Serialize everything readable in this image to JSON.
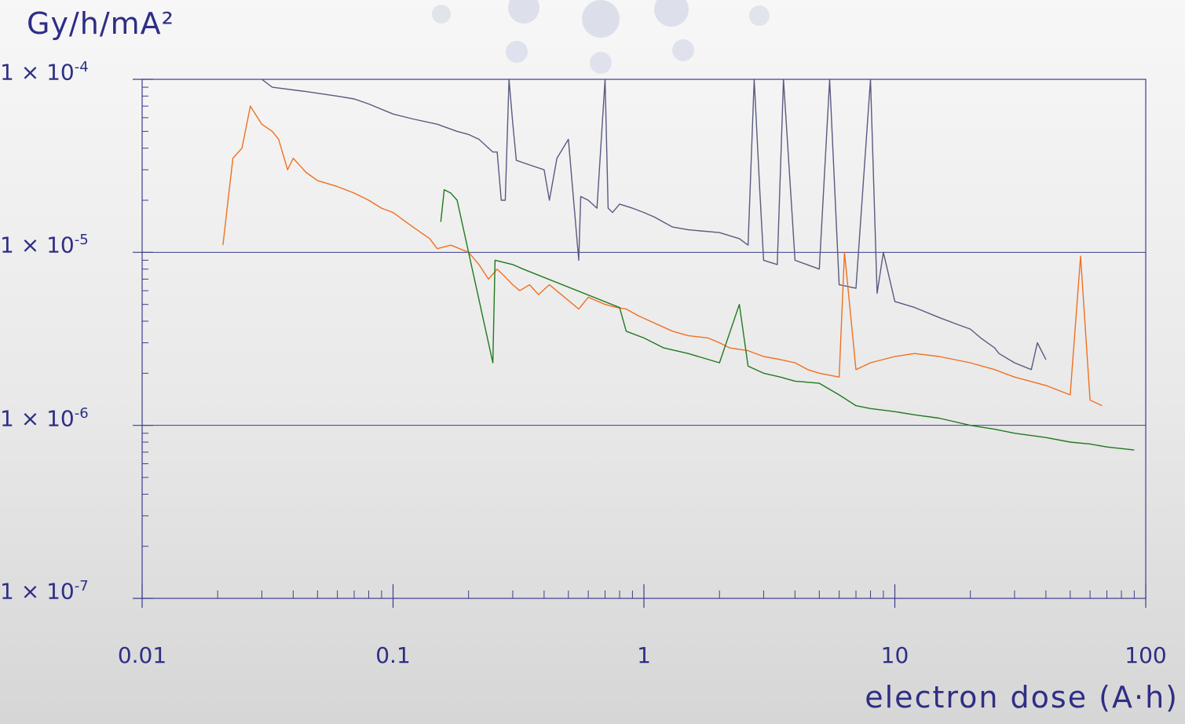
{
  "chart_data": {
    "type": "line",
    "title": "",
    "ylabel": "Gy/h/mA²",
    "xlabel": "electron dose (A·h)",
    "x_scale": "log",
    "y_scale": "log",
    "xlim": [
      0.01,
      100
    ],
    "ylim": [
      1e-07,
      0.0001
    ],
    "grid": "horizontal major lines",
    "legend": "none",
    "x_ticks": [
      {
        "value": 0.01,
        "label": "0.01"
      },
      {
        "value": 0.1,
        "label": "0.1"
      },
      {
        "value": 1,
        "label": "1"
      },
      {
        "value": 10,
        "label": "10"
      },
      {
        "value": 100,
        "label": "100"
      }
    ],
    "y_ticks": [
      {
        "value": 0.0001,
        "mantissa": "1 × 10",
        "exponent": "-4"
      },
      {
        "value": 1e-05,
        "mantissa": "1 × 10",
        "exponent": "-5"
      },
      {
        "value": 1e-06,
        "mantissa": "1 × 10",
        "exponent": "-6"
      },
      {
        "value": 1e-07,
        "mantissa": "1 × 10",
        "exponent": "-7"
      }
    ],
    "series": [
      {
        "color": "#5a5a80",
        "points": [
          [
            0.03,
            0.0001
          ],
          [
            0.033,
            9e-05
          ],
          [
            0.045,
            8.5e-05
          ],
          [
            0.06,
            8e-05
          ],
          [
            0.07,
            7.7e-05
          ],
          [
            0.08,
            7.2e-05
          ],
          [
            0.1,
            6.3e-05
          ],
          [
            0.12,
            5.9e-05
          ],
          [
            0.15,
            5.5e-05
          ],
          [
            0.18,
            5e-05
          ],
          [
            0.2,
            4.8e-05
          ],
          [
            0.22,
            4.5e-05
          ],
          [
            0.25,
            3.8e-05
          ],
          [
            0.26,
            3.8e-05
          ],
          [
            0.27,
            2e-05
          ],
          [
            0.28,
            2e-05
          ],
          [
            0.29,
            0.0001
          ],
          [
            0.3,
            5.6e-05
          ],
          [
            0.31,
            3.4e-05
          ],
          [
            0.35,
            3.2e-05
          ],
          [
            0.4,
            3e-05
          ],
          [
            0.42,
            2e-05
          ],
          [
            0.45,
            3.5e-05
          ],
          [
            0.5,
            4.5e-05
          ],
          [
            0.55,
            9e-06
          ],
          [
            0.56,
            2.1e-05
          ],
          [
            0.6,
            2e-05
          ],
          [
            0.65,
            1.8e-05
          ],
          [
            0.7,
            0.0001
          ],
          [
            0.72,
            1.8e-05
          ],
          [
            0.75,
            1.7e-05
          ],
          [
            0.8,
            1.9e-05
          ],
          [
            0.9,
            1.8e-05
          ],
          [
            1.0,
            1.7e-05
          ],
          [
            1.1,
            1.6e-05
          ],
          [
            1.3,
            1.4e-05
          ],
          [
            1.5,
            1.35e-05
          ],
          [
            2.0,
            1.3e-05
          ],
          [
            2.4,
            1.2e-05
          ],
          [
            2.6,
            1.1e-05
          ],
          [
            2.75,
            0.0001
          ],
          [
            2.9,
            2.2e-05
          ],
          [
            3.0,
            9e-06
          ],
          [
            3.4,
            8.5e-06
          ],
          [
            3.6,
            0.0001
          ],
          [
            4.0,
            9e-06
          ],
          [
            5.0,
            8e-06
          ],
          [
            5.5,
            0.0001
          ],
          [
            6.0,
            6.5e-06
          ],
          [
            7.0,
            6.2e-06
          ],
          [
            8.0,
            0.0001
          ],
          [
            8.5,
            5.8e-06
          ],
          [
            9.0,
            1e-05
          ],
          [
            10.0,
            5.2e-06
          ],
          [
            12.0,
            4.8e-06
          ],
          [
            15.0,
            4.2e-06
          ],
          [
            18.0,
            3.8e-06
          ],
          [
            20.0,
            3.6e-06
          ],
          [
            22.0,
            3.2e-06
          ],
          [
            25.0,
            2.8e-06
          ],
          [
            26.0,
            2.6e-06
          ],
          [
            30.0,
            2.3e-06
          ],
          [
            35.0,
            2.1e-06
          ],
          [
            37.0,
            3e-06
          ],
          [
            40.0,
            2.4e-06
          ]
        ]
      },
      {
        "color": "#f07020",
        "points": [
          [
            0.021,
            1.1e-05
          ],
          [
            0.022,
            2e-05
          ],
          [
            0.023,
            3.5e-05
          ],
          [
            0.025,
            4e-05
          ],
          [
            0.027,
            7e-05
          ],
          [
            0.03,
            5.5e-05
          ],
          [
            0.033,
            5e-05
          ],
          [
            0.035,
            4.5e-05
          ],
          [
            0.038,
            3e-05
          ],
          [
            0.04,
            3.5e-05
          ],
          [
            0.045,
            2.9e-05
          ],
          [
            0.05,
            2.6e-05
          ],
          [
            0.06,
            2.4e-05
          ],
          [
            0.07,
            2.2e-05
          ],
          [
            0.08,
            2e-05
          ],
          [
            0.09,
            1.8e-05
          ],
          [
            0.1,
            1.7e-05
          ],
          [
            0.12,
            1.4e-05
          ],
          [
            0.14,
            1.2e-05
          ],
          [
            0.15,
            1.05e-05
          ],
          [
            0.17,
            1.1e-05
          ],
          [
            0.2,
            1e-05
          ],
          [
            0.22,
            8.5e-06
          ],
          [
            0.24,
            7e-06
          ],
          [
            0.26,
            8e-06
          ],
          [
            0.28,
            7.2e-06
          ],
          [
            0.3,
            6.5e-06
          ],
          [
            0.32,
            6e-06
          ],
          [
            0.35,
            6.5e-06
          ],
          [
            0.38,
            5.7e-06
          ],
          [
            0.42,
            6.5e-06
          ],
          [
            0.55,
            4.7e-06
          ],
          [
            0.6,
            5.5e-06
          ],
          [
            0.7,
            5e-06
          ],
          [
            0.78,
            4.8e-06
          ],
          [
            0.85,
            4.7e-06
          ],
          [
            0.95,
            4.3e-06
          ],
          [
            1.1,
            3.9e-06
          ],
          [
            1.3,
            3.5e-06
          ],
          [
            1.5,
            3.3e-06
          ],
          [
            1.8,
            3.2e-06
          ],
          [
            2.0,
            3e-06
          ],
          [
            2.2,
            2.8e-06
          ],
          [
            2.6,
            2.7e-06
          ],
          [
            3.0,
            2.5e-06
          ],
          [
            3.5,
            2.4e-06
          ],
          [
            4.0,
            2.3e-06
          ],
          [
            4.5,
            2.1e-06
          ],
          [
            5.0,
            2e-06
          ],
          [
            6.0,
            1.9e-06
          ],
          [
            6.3,
            1e-05
          ],
          [
            7.0,
            2.1e-06
          ],
          [
            8.0,
            2.3e-06
          ],
          [
            10.0,
            2.5e-06
          ],
          [
            12.0,
            2.6e-06
          ],
          [
            15.0,
            2.5e-06
          ],
          [
            20.0,
            2.3e-06
          ],
          [
            25.0,
            2.1e-06
          ],
          [
            30.0,
            1.9e-06
          ],
          [
            40.0,
            1.7e-06
          ],
          [
            50.0,
            1.5e-06
          ],
          [
            55.0,
            9.5e-06
          ],
          [
            60.0,
            1.4e-06
          ],
          [
            67.0,
            1.3e-06
          ]
        ]
      },
      {
        "color": "#1f7a1f",
        "points": [
          [
            0.155,
            1.5e-05
          ],
          [
            0.16,
            2.3e-05
          ],
          [
            0.17,
            2.2e-05
          ],
          [
            0.18,
            2e-05
          ],
          [
            0.25,
            2.3e-06
          ],
          [
            0.255,
            9e-06
          ],
          [
            0.3,
            8.5e-06
          ],
          [
            0.33,
            8e-06
          ],
          [
            0.8,
            4.8e-06
          ],
          [
            0.85,
            3.5e-06
          ],
          [
            1.0,
            3.2e-06
          ],
          [
            1.2,
            2.8e-06
          ],
          [
            1.5,
            2.6e-06
          ],
          [
            2.0,
            2.3e-06
          ],
          [
            2.4,
            5e-06
          ],
          [
            2.6,
            2.2e-06
          ],
          [
            3.0,
            2e-06
          ],
          [
            3.5,
            1.9e-06
          ],
          [
            4.0,
            1.8e-06
          ],
          [
            5.0,
            1.75e-06
          ],
          [
            6.0,
            1.5e-06
          ],
          [
            7.0,
            1.3e-06
          ],
          [
            8.0,
            1.25e-06
          ],
          [
            10.0,
            1.2e-06
          ],
          [
            12.0,
            1.15e-06
          ],
          [
            15.0,
            1.1e-06
          ],
          [
            20.0,
            1e-06
          ],
          [
            25.0,
            9.5e-07
          ],
          [
            30.0,
            9e-07
          ],
          [
            40.0,
            8.5e-07
          ],
          [
            50.0,
            8e-07
          ],
          [
            60.0,
            7.8e-07
          ],
          [
            70.0,
            7.5e-07
          ],
          [
            90.0,
            7.2e-07
          ]
        ]
      }
    ]
  }
}
